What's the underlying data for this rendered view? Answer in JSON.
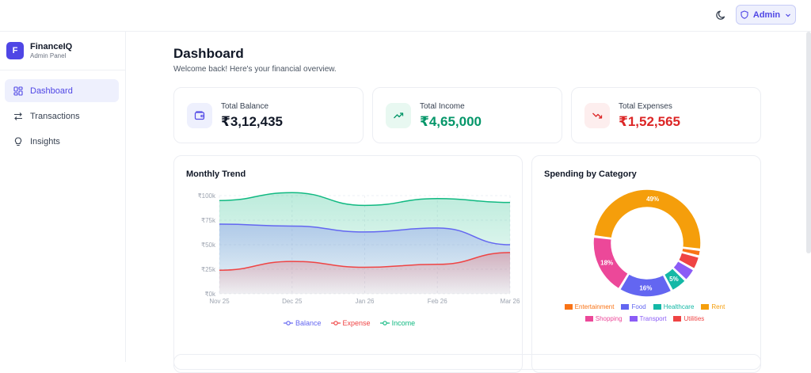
{
  "header": {
    "theme_toggle_icon": "moon-icon",
    "user_button": {
      "icon": "shield-icon",
      "label": "Admin",
      "chevron": "chevron-down-icon"
    }
  },
  "sidebar": {
    "brand": {
      "logo_letter": "F",
      "name": "FinanceIQ",
      "subtitle": "Admin Panel"
    },
    "items": [
      {
        "label": "Dashboard",
        "icon": "grid-icon",
        "active": true
      },
      {
        "label": "Transactions",
        "icon": "arrows-icon",
        "active": false
      },
      {
        "label": "Insights",
        "icon": "lightbulb-icon",
        "active": false
      }
    ]
  },
  "page": {
    "title": "Dashboard",
    "subtitle": "Welcome back! Here's your financial overview."
  },
  "stats": [
    {
      "label": "Total Balance",
      "value": "₹3,12,435",
      "icon": "wallet-icon",
      "color": "#111827",
      "icon_bg": "#eef0fd",
      "icon_color": "#4f46e5"
    },
    {
      "label": "Total Income",
      "value": "₹4,65,000",
      "icon": "trending-up-icon",
      "color": "#059669",
      "icon_bg": "#e8f8f1",
      "icon_color": "#059669"
    },
    {
      "label": "Total Expenses",
      "value": "₹1,52,565",
      "icon": "trending-down-icon",
      "color": "#dc2626",
      "icon_bg": "#fdeeee",
      "icon_color": "#dc2626"
    }
  ],
  "trend": {
    "title": "Monthly Trend",
    "legend": [
      "Balance",
      "Expense",
      "Income"
    ]
  },
  "category": {
    "title": "Spending by Category"
  },
  "colors": {
    "accent": "#4f46e5",
    "balance": "#6366f1",
    "expense": "#ef4444",
    "income": "#10b981"
  },
  "chart_data": [
    {
      "type": "area",
      "title": "Monthly Trend",
      "categories": [
        "Nov 25",
        "Dec 25",
        "Jan 26",
        "Feb 26",
        "Mar 26"
      ],
      "y_ticks": [
        "₹0k",
        "₹25k",
        "₹50k",
        "₹75k",
        "₹100k"
      ],
      "ylim": [
        0,
        100000
      ],
      "series": [
        {
          "name": "Balance",
          "color": "#6366f1",
          "values": [
            71000,
            69000,
            63000,
            67000,
            50000
          ]
        },
        {
          "name": "Expense",
          "color": "#ef4444",
          "values": [
            24000,
            33000,
            27000,
            30000,
            42000
          ]
        },
        {
          "name": "Income",
          "color": "#10b981",
          "values": [
            95000,
            103000,
            90000,
            97000,
            93000
          ]
        }
      ],
      "grid": true,
      "legend_position": "bottom"
    },
    {
      "type": "pie",
      "title": "Spending by Category",
      "donut": true,
      "slices": [
        {
          "label": "Rent",
          "value": 49,
          "color": "#f59e0b",
          "show_label": true
        },
        {
          "label": "Entertainment",
          "value": 2,
          "color": "#f97316",
          "show_label": false
        },
        {
          "label": "Utilities",
          "value": 4,
          "color": "#ef4444",
          "show_label": false
        },
        {
          "label": "Transport",
          "value": 4,
          "color": "#8b5cf6",
          "show_label": false
        },
        {
          "label": "Healthcare",
          "value": 5,
          "color": "#14b8a6",
          "show_label": true
        },
        {
          "label": "Food",
          "value": 16,
          "color": "#6366f1",
          "show_label": true
        },
        {
          "label": "Shopping",
          "value": 18,
          "color": "#ec4899",
          "show_label": true
        }
      ],
      "legend_rows": [
        [
          "Entertainment",
          "Food",
          "Healthcare",
          "Rent"
        ],
        [
          "Shopping",
          "Transport",
          "Utilities"
        ]
      ]
    }
  ]
}
